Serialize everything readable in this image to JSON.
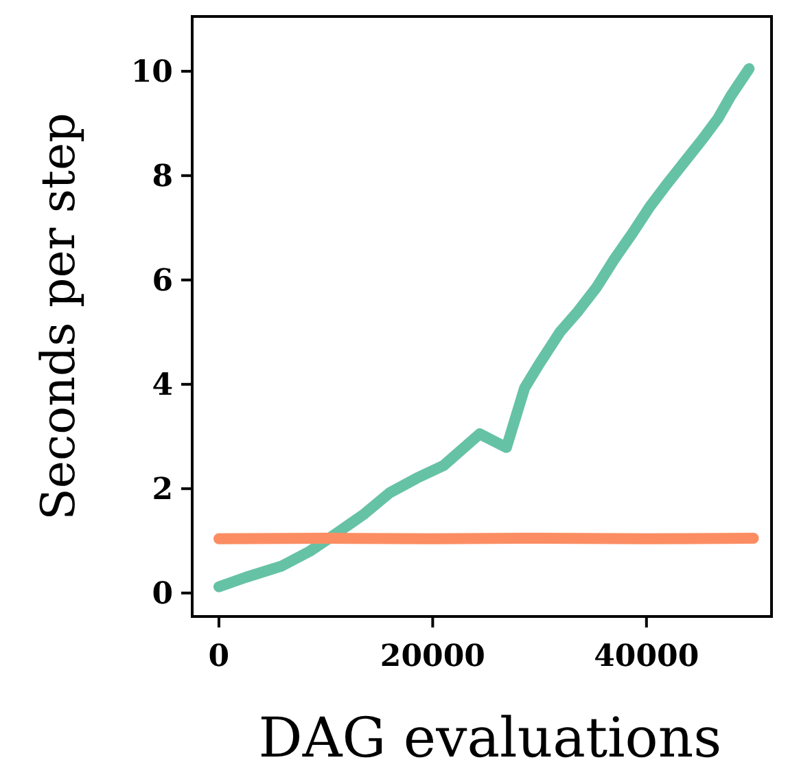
{
  "chart_data": {
    "type": "line",
    "xlabel": "DAG evaluations",
    "ylabel": "Seconds per step",
    "xlim": [
      -2500,
      51700
    ],
    "xticks": [
      0,
      20000,
      40000
    ],
    "ylim": [
      -0.45,
      11.05
    ],
    "yticks": [
      0,
      2,
      4,
      6,
      8,
      10
    ],
    "line_style": "solid",
    "series": [
      {
        "color": "#66c2a5",
        "x": [
          0,
          2500,
          5900,
          8500,
          10900,
          13500,
          15970,
          18500,
          21000,
          24400,
          26900,
          28600,
          30000,
          31900,
          33600,
          35300,
          37000,
          38700,
          40300,
          42000,
          43700,
          45400,
          46700,
          47900,
          49600
        ],
        "values": [
          0.12,
          0.3,
          0.52,
          0.8,
          1.13,
          1.5,
          1.92,
          2.2,
          2.44,
          3.05,
          2.79,
          3.93,
          4.4,
          5.0,
          5.4,
          5.85,
          6.4,
          6.9,
          7.4,
          7.86,
          8.3,
          8.74,
          9.1,
          9.53,
          10.05
        ]
      },
      {
        "color": "#fc8d62",
        "x": [
          0,
          10000,
          20000,
          30000,
          40000,
          50000
        ],
        "values": [
          1.04,
          1.05,
          1.04,
          1.05,
          1.04,
          1.05
        ]
      }
    ]
  }
}
